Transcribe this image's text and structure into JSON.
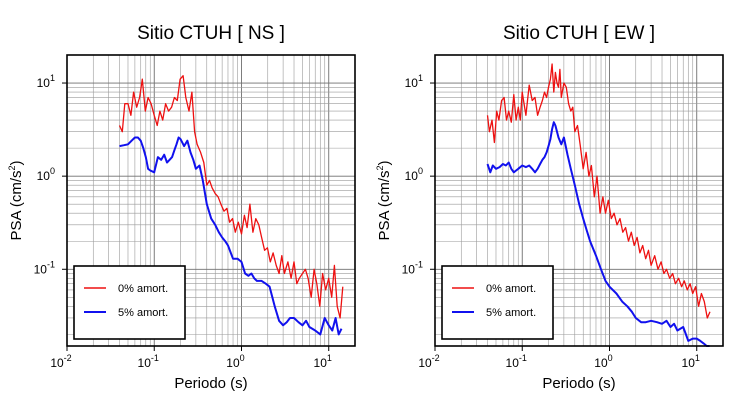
{
  "chart_data": [
    {
      "type": "line",
      "title": "Sitio CTUH [ NS ]",
      "xlabel": "Periodo (s)",
      "ylabel": "PSA (cm/s",
      "ylabel_exp": "2",
      "ylabel_close": ")",
      "xscale": "log",
      "yscale": "log",
      "xlim": [
        0.01,
        20
      ],
      "ylim": [
        0.015,
        20
      ],
      "grid": true,
      "legend_position": "bottom-left",
      "series": [
        {
          "name": "0% amort.",
          "color": "#ee1111",
          "x": [
            0.04,
            0.043,
            0.046,
            0.05,
            0.054,
            0.058,
            0.063,
            0.068,
            0.073,
            0.079,
            0.085,
            0.092,
            0.1,
            0.108,
            0.116,
            0.125,
            0.135,
            0.146,
            0.158,
            0.17,
            0.184,
            0.198,
            0.214,
            0.23,
            0.25,
            0.27,
            0.29,
            0.31,
            0.34,
            0.37,
            0.4,
            0.43,
            0.46,
            0.5,
            0.54,
            0.58,
            0.63,
            0.68,
            0.73,
            0.79,
            0.85,
            0.92,
            1.0,
            1.08,
            1.16,
            1.25,
            1.35,
            1.46,
            1.58,
            1.7,
            1.84,
            1.98,
            2.14,
            2.3,
            2.5,
            2.7,
            2.9,
            3.1,
            3.4,
            3.7,
            4.0,
            4.3,
            4.6,
            5.0,
            5.4,
            5.8,
            6.3,
            6.8,
            7.3,
            7.9,
            8.5,
            9.2,
            10.0,
            10.8,
            11.6,
            12.5,
            13.5,
            14.5
          ],
          "y": [
            3.5,
            3.0,
            6.0,
            6.0,
            4.5,
            8.0,
            5.5,
            7.0,
            11.0,
            5.0,
            7.0,
            6.0,
            4.5,
            3.5,
            5.0,
            4.0,
            6.0,
            5.0,
            5.5,
            7.0,
            6.5,
            11.0,
            12.0,
            7.0,
            5.0,
            8.0,
            3.0,
            2.2,
            1.8,
            1.4,
            0.8,
            0.9,
            0.75,
            0.65,
            0.6,
            0.5,
            0.42,
            0.45,
            0.32,
            0.35,
            0.25,
            0.32,
            0.24,
            0.38,
            0.28,
            0.5,
            0.25,
            0.35,
            0.3,
            0.22,
            0.16,
            0.17,
            0.12,
            0.15,
            0.11,
            0.09,
            0.14,
            0.09,
            0.12,
            0.08,
            0.12,
            0.07,
            0.08,
            0.09,
            0.1,
            0.08,
            0.05,
            0.1,
            0.07,
            0.04,
            0.09,
            0.06,
            0.08,
            0.05,
            0.11,
            0.04,
            0.03,
            0.065
          ]
        },
        {
          "name": "5% amort.",
          "color": "#1111ee",
          "x": [
            0.04,
            0.045,
            0.05,
            0.055,
            0.06,
            0.065,
            0.07,
            0.075,
            0.08,
            0.085,
            0.09,
            0.1,
            0.11,
            0.12,
            0.13,
            0.14,
            0.15,
            0.16,
            0.17,
            0.18,
            0.19,
            0.2,
            0.22,
            0.24,
            0.26,
            0.28,
            0.3,
            0.33,
            0.36,
            0.4,
            0.45,
            0.5,
            0.55,
            0.6,
            0.65,
            0.7,
            0.8,
            0.9,
            1.0,
            1.1,
            1.2,
            1.3,
            1.4,
            1.5,
            1.7,
            1.9,
            2.1,
            2.4,
            2.7,
            3.0,
            3.3,
            3.6,
            4.0,
            4.5,
            5.0,
            5.5,
            6.0,
            7.0,
            8.0,
            9.0,
            10.0,
            11.0,
            12.0,
            13.0,
            14.0
          ],
          "y": [
            2.1,
            2.15,
            2.2,
            2.4,
            2.6,
            2.6,
            2.4,
            2.0,
            1.6,
            1.2,
            1.15,
            1.1,
            1.6,
            1.5,
            1.7,
            1.4,
            1.5,
            1.6,
            1.9,
            2.2,
            2.6,
            2.5,
            2.1,
            2.4,
            1.8,
            1.5,
            1.2,
            1.3,
            0.9,
            0.5,
            0.35,
            0.3,
            0.25,
            0.22,
            0.2,
            0.18,
            0.13,
            0.13,
            0.12,
            0.09,
            0.085,
            0.09,
            0.08,
            0.075,
            0.075,
            0.07,
            0.065,
            0.04,
            0.028,
            0.025,
            0.027,
            0.03,
            0.03,
            0.027,
            0.025,
            0.028,
            0.024,
            0.022,
            0.02,
            0.03,
            0.025,
            0.022,
            0.03,
            0.02,
            0.023
          ]
        }
      ]
    },
    {
      "type": "line",
      "title": "Sitio CTUH [ EW ]",
      "xlabel": "Periodo (s)",
      "ylabel": "PSA (cm/s",
      "ylabel_exp": "2",
      "ylabel_close": ")",
      "xscale": "log",
      "yscale": "log",
      "xlim": [
        0.01,
        20
      ],
      "ylim": [
        0.015,
        20
      ],
      "grid": true,
      "legend_position": "bottom-left",
      "series": [
        {
          "name": "0% amort.",
          "color": "#ee1111",
          "x": [
            0.04,
            0.042,
            0.045,
            0.048,
            0.051,
            0.054,
            0.058,
            0.062,
            0.066,
            0.07,
            0.075,
            0.08,
            0.085,
            0.09,
            0.095,
            0.1,
            0.11,
            0.12,
            0.13,
            0.14,
            0.15,
            0.16,
            0.17,
            0.18,
            0.19,
            0.2,
            0.21,
            0.22,
            0.23,
            0.24,
            0.25,
            0.26,
            0.27,
            0.28,
            0.3,
            0.32,
            0.34,
            0.36,
            0.38,
            0.4,
            0.43,
            0.46,
            0.5,
            0.54,
            0.58,
            0.62,
            0.67,
            0.72,
            0.78,
            0.84,
            0.9,
            0.97,
            1.05,
            1.13,
            1.22,
            1.32,
            1.42,
            1.53,
            1.65,
            1.78,
            1.92,
            2.07,
            2.23,
            2.4,
            2.6,
            2.8,
            3.0,
            3.3,
            3.6,
            3.9,
            4.2,
            4.5,
            4.9,
            5.3,
            5.7,
            6.2,
            6.7,
            7.2,
            7.8,
            8.4,
            9.0,
            9.7,
            10.5,
            11.3,
            12.2,
            13.2,
            14.2
          ],
          "y": [
            4.5,
            3.0,
            4.0,
            2.3,
            5.0,
            4.0,
            6.5,
            7.0,
            4.0,
            5.0,
            3.8,
            7.5,
            4.0,
            5.5,
            4.0,
            8.0,
            4.5,
            9.5,
            6.5,
            7.0,
            4.5,
            5.5,
            6.5,
            8.0,
            7.0,
            9.0,
            11.0,
            16.0,
            8.0,
            13.0,
            10.0,
            9.0,
            14.0,
            7.0,
            10.0,
            9.0,
            6.0,
            5.0,
            5.5,
            3.0,
            3.5,
            2.2,
            1.2,
            1.8,
            1.0,
            1.3,
            0.6,
            1.0,
            0.4,
            0.6,
            0.4,
            0.55,
            0.35,
            0.4,
            0.3,
            0.35,
            0.25,
            0.28,
            0.2,
            0.25,
            0.18,
            0.22,
            0.15,
            0.18,
            0.13,
            0.16,
            0.11,
            0.14,
            0.1,
            0.12,
            0.09,
            0.1,
            0.08,
            0.09,
            0.07,
            0.08,
            0.065,
            0.075,
            0.06,
            0.07,
            0.055,
            0.065,
            0.04,
            0.055,
            0.045,
            0.03,
            0.035
          ]
        },
        {
          "name": "5% amort.",
          "color": "#1111ee",
          "x": [
            0.04,
            0.043,
            0.046,
            0.05,
            0.055,
            0.06,
            0.065,
            0.07,
            0.075,
            0.08,
            0.085,
            0.09,
            0.1,
            0.11,
            0.12,
            0.13,
            0.14,
            0.15,
            0.16,
            0.17,
            0.18,
            0.19,
            0.2,
            0.21,
            0.22,
            0.23,
            0.24,
            0.26,
            0.28,
            0.3,
            0.33,
            0.36,
            0.4,
            0.45,
            0.5,
            0.55,
            0.6,
            0.7,
            0.8,
            0.9,
            1.0,
            1.2,
            1.4,
            1.6,
            1.8,
            2.0,
            2.3,
            2.6,
            3.0,
            3.5,
            4.0,
            4.5,
            5.0,
            5.5,
            6.0,
            7.0,
            8.0,
            9.0,
            10.0,
            11.0,
            12.0,
            13.0,
            14.0
          ],
          "y": [
            1.35,
            1.1,
            1.3,
            1.2,
            1.25,
            1.35,
            1.3,
            1.4,
            1.2,
            1.1,
            1.15,
            1.2,
            1.3,
            1.25,
            1.3,
            1.2,
            1.1,
            1.2,
            1.35,
            1.5,
            1.6,
            1.8,
            2.1,
            2.5,
            3.2,
            3.8,
            3.5,
            2.6,
            2.2,
            2.6,
            1.7,
            1.2,
            0.8,
            0.5,
            0.35,
            0.26,
            0.2,
            0.14,
            0.1,
            0.075,
            0.065,
            0.055,
            0.045,
            0.04,
            0.035,
            0.03,
            0.027,
            0.027,
            0.028,
            0.027,
            0.026,
            0.028,
            0.024,
            0.026,
            0.022,
            0.024,
            0.017,
            0.018,
            0.018,
            0.017,
            0.016,
            0.015,
            0.015
          ]
        }
      ]
    }
  ]
}
